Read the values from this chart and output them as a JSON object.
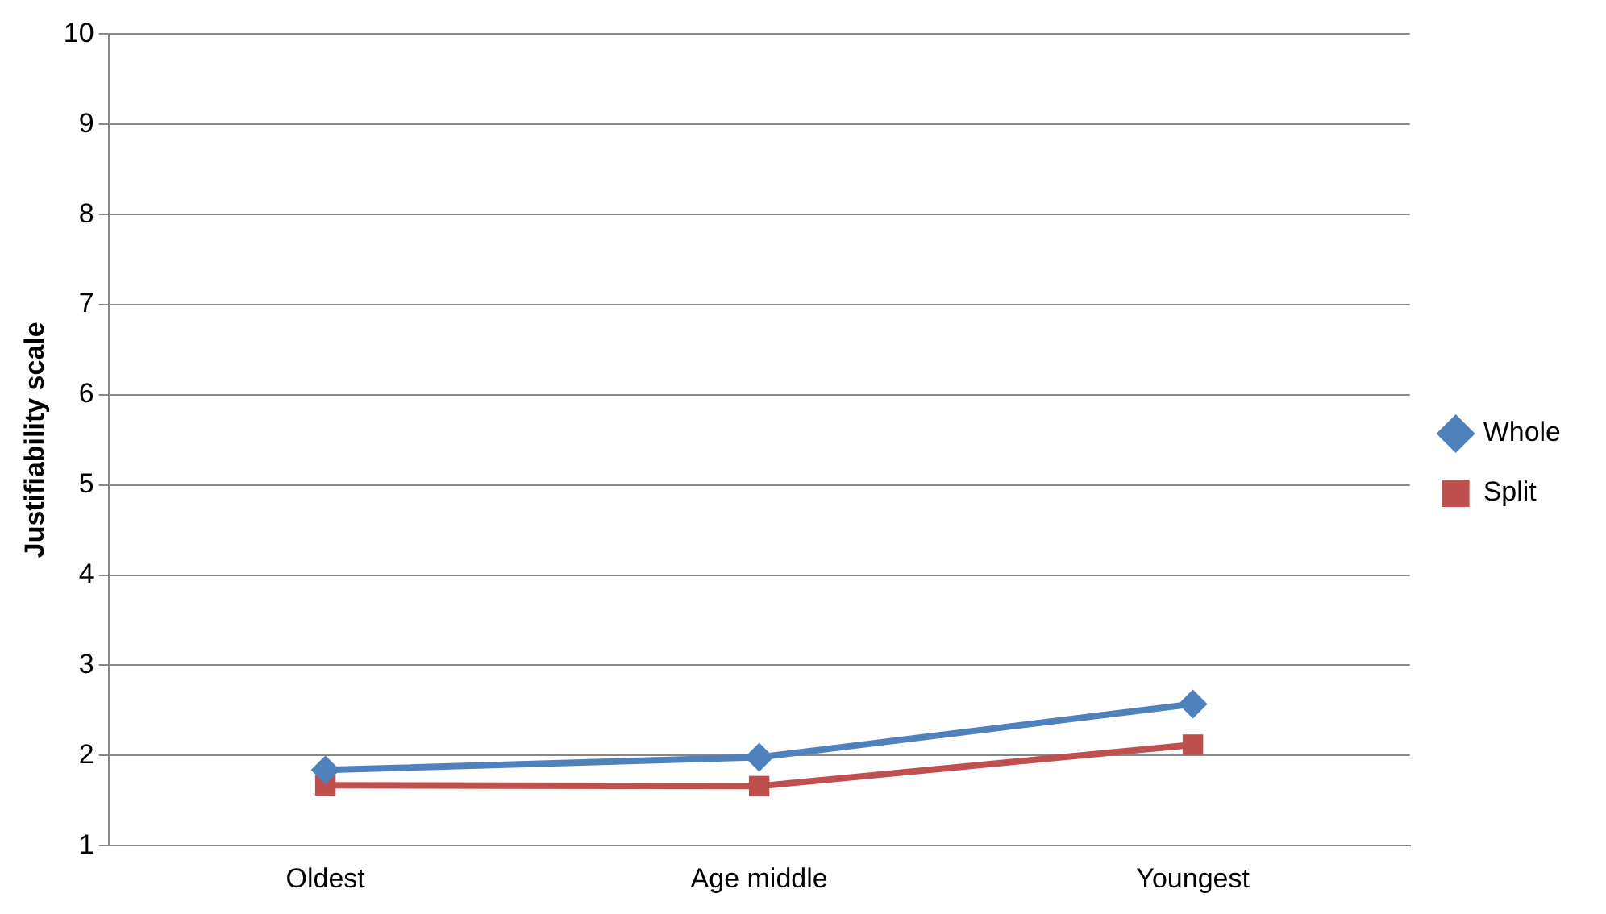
{
  "chart_data": {
    "type": "line",
    "ylabel": "Justifiability scale",
    "categories": [
      "Oldest",
      "Age middle",
      "Youngest"
    ],
    "series": [
      {
        "name": "Whole",
        "color": "#4f81bd",
        "marker": "diamond",
        "values": [
          1.84,
          1.98,
          2.57
        ]
      },
      {
        "name": "Split",
        "color": "#c0504d",
        "marker": "square",
        "values": [
          1.67,
          1.66,
          2.12
        ]
      }
    ],
    "ylim": [
      1,
      10
    ],
    "yticks": [
      1,
      2,
      3,
      4,
      5,
      6,
      7,
      8,
      9,
      10
    ],
    "grid": "y",
    "legend": "right"
  }
}
